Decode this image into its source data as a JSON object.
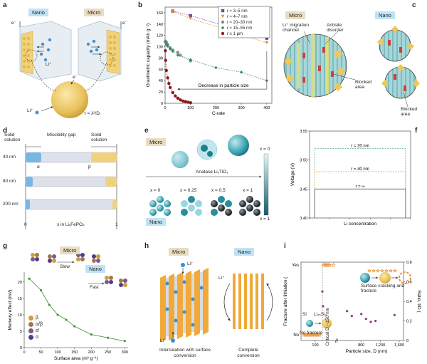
{
  "panels": {
    "a": {
      "label": "a",
      "nano": "Nano",
      "micro": "Micro",
      "e_left": "e⁻",
      "e_right": "e⁻",
      "e_bottom": "e⁻",
      "li_inner": "Li⁺",
      "li_outer": "Li⁺",
      "tau": "τ = λ²/Dᵢ"
    },
    "b": {
      "label": "b",
      "ylabel": "Gravimetric capacity (mAh g⁻¹)",
      "xlabel": "C-rate",
      "annotation": "Decrease in particle size"
    },
    "c": {
      "label": "c",
      "micro": "Micro",
      "nano": "Nano",
      "migration": "Li⁺ migration channel",
      "antisite": "Antisite disorder",
      "blocked1": "Blocked area",
      "blocked2": "Blocked area"
    },
    "d": {
      "label": "d",
      "solid1": "Solid solution",
      "gap": "Miscibility gap",
      "solid2": "Solid solution",
      "rows": [
        "40 nm",
        "80 nm",
        "200 nm"
      ],
      "alpha": "α",
      "beta": "β",
      "x0": "0",
      "x1": "1",
      "xlabel": "x in LiₓFePO₄"
    },
    "e": {
      "label": "e",
      "micro": "Micro",
      "nano": "Nano",
      "material": "Anatase LiₓTiO₂",
      "xs": [
        "x = 0",
        "x = 0.25",
        "x = 0.5",
        "x = 1"
      ],
      "x0": "x = 0",
      "x_left": "x = 0",
      "x1": "x = 1"
    },
    "f": {
      "label": "f",
      "ylabel": "Voltage (V)",
      "xlabel": "Li concentration",
      "r20": "r = 20 nm",
      "r40": "r = 40 nm",
      "rinf": "r = ∞"
    },
    "g": {
      "label": "g",
      "micro": "Micro",
      "nano": "Nano",
      "slow": "Slow",
      "fast": "Fast",
      "ylabel": "Memory effect (mV)",
      "xlabel": "Surface area (m² g⁻¹)",
      "legend": [
        "β",
        "α/β",
        "α′",
        "α"
      ]
    },
    "h": {
      "label": "h",
      "micro": "Micro",
      "nano": "Nano",
      "li_top": "Li⁺",
      "li_bottom": "Li⁺",
      "li_nano": "Li⁺",
      "cap_micro": "Intercalation with surface conversion",
      "cap_nano": "Complete conversion"
    },
    "i": {
      "label": "i",
      "ylabel_left": "Fracture after lithiation (",
      "ylabel_right": "Ratio, t/D (",
      "yes": "Yes",
      "no": "No",
      "critical": "Critical D ~150 nm",
      "si": "Si",
      "lisi": "Li₁₅Si₄",
      "nofracture": "No fracture",
      "surface": "Surface cracking and fracture",
      "xlabel": "Particle size, D (nm)"
    }
  },
  "chart_data": [
    {
      "panel": "b",
      "type": "line",
      "xlabel": "C-rate",
      "ylabel": "Gravimetric capacity (mAh g⁻¹)",
      "xlim": [
        0,
        420
      ],
      "ylim": [
        0,
        170
      ],
      "xticks": [
        0,
        100,
        200,
        300,
        400
      ],
      "yticks": [
        0,
        20,
        40,
        60,
        80,
        100,
        120,
        140,
        160
      ],
      "legend_position": "top-right",
      "series": [
        {
          "name": "r ≈ 3–5 nm",
          "color": "#6c4aa2",
          "marker": "square",
          "x": [
            30,
            100,
            400
          ],
          "y": [
            163,
            155,
            115
          ]
        },
        {
          "name": "r ≈ 4–7 nm",
          "color": "#e08a2e",
          "marker": "triangle",
          "x": [
            30,
            100,
            400
          ],
          "y": [
            162,
            150,
            107
          ]
        },
        {
          "name": "r ≈ 20–30 nm",
          "color": "#8a8a8a",
          "marker": "circle",
          "x": [
            1,
            5,
            10,
            20,
            30,
            50,
            60,
            100
          ],
          "y": [
            110,
            108,
            104,
            98,
            94,
            90,
            85,
            75
          ]
        },
        {
          "name": "r ≈ 15–55 nm",
          "color": "#2e8b57",
          "marker": "diamond",
          "x": [
            1,
            5,
            10,
            20,
            30,
            50,
            100,
            200,
            300,
            400
          ],
          "y": [
            108,
            104,
            101,
            96,
            92,
            85,
            77,
            63,
            55,
            40
          ]
        },
        {
          "name": "r ≥ 1 μm",
          "color": "#8b1a1a",
          "marker": "circle",
          "x": [
            1,
            2,
            5,
            10,
            15,
            20,
            30,
            40,
            50,
            60,
            70,
            80,
            90,
            100
          ],
          "y": [
            93,
            76,
            58,
            45,
            35,
            28,
            19,
            13,
            9,
            6,
            4,
            3,
            2,
            1
          ]
        }
      ]
    },
    {
      "panel": "f",
      "type": "line",
      "xlabel": "Li concentration",
      "ylabel": "Voltage (V)",
      "xlim": [
        0,
        1
      ],
      "ylim": [
        3.4,
        3.55
      ],
      "xticks": [
        0,
        0.2,
        0.4,
        0.6,
        0.8,
        1.0
      ],
      "yticks": [
        3.4,
        3.45,
        3.5,
        3.55
      ],
      "series": [
        {
          "name": "r = 20 nm",
          "color": "#5aaa8a",
          "style": "dashed",
          "x": [
            0.05,
            0.05,
            0.95,
            0.95
          ],
          "y": [
            3.4,
            3.52,
            3.52,
            3.4
          ]
        },
        {
          "name": "r = 40 nm",
          "color": "#e3b04b",
          "style": "dashed",
          "x": [
            0.05,
            0.05,
            0.95,
            0.95
          ],
          "y": [
            3.4,
            3.48,
            3.48,
            3.4
          ]
        },
        {
          "name": "r = ∞",
          "color": "#555555",
          "style": "solid",
          "x": [
            0.05,
            0.05,
            0.95,
            0.95
          ],
          "y": [
            3.4,
            3.45,
            3.45,
            3.4
          ]
        }
      ]
    },
    {
      "panel": "g",
      "type": "line",
      "xlabel": "Surface area (m² g⁻¹)",
      "ylabel": "Memory effect (mV)",
      "xlim": [
        0,
        310
      ],
      "ylim": [
        0,
        23
      ],
      "xticks": [
        0,
        50,
        100,
        150,
        200,
        250,
        300
      ],
      "yticks": [
        0,
        5,
        10,
        15,
        20
      ],
      "series": [
        {
          "name": "",
          "color": "#4a9a3a",
          "x": [
            15,
            50,
            75,
            100,
            125,
            150,
            200,
            250,
            300
          ],
          "y": [
            21,
            17.5,
            13,
            10,
            8.5,
            6.5,
            4,
            3,
            2
          ]
        }
      ]
    },
    {
      "panel": "i",
      "type": "scatter",
      "xlabel": "Particle size, D (nm)",
      "ylabel": "Fracture after lithiation",
      "yticks_left": [
        "No",
        "Yes"
      ],
      "yticks_right": [
        0,
        0.2,
        0.4,
        0.6,
        0.8
      ],
      "xticks": [
        "100",
        "800",
        "1,200",
        "1,600"
      ],
      "series": [
        {
          "name": "",
          "color": "#e3913c",
          "marker": "star",
          "x": [
            20,
            30,
            40,
            50,
            60,
            70,
            80,
            90,
            100,
            110,
            120,
            130
          ],
          "y": [
            "No",
            "No",
            "No",
            "No",
            "No",
            "No",
            "No",
            "No",
            "No",
            "No",
            "No",
            "No"
          ]
        },
        {
          "name": "",
          "color": "#e3913c",
          "marker": "star",
          "x": [
            160,
            170,
            180,
            190,
            200,
            210
          ],
          "y": [
            "Yes",
            "Yes",
            "Yes",
            "Yes",
            "Yes",
            "Yes"
          ]
        },
        {
          "name": "",
          "color": "#8e3a8a",
          "marker": "circle",
          "x": [
            150,
            155,
            500,
            600,
            800,
            900,
            1000,
            1100,
            1500
          ],
          "y": [
            0.5,
            0.35,
            0.3,
            0.25,
            0.27,
            0.22,
            0.19,
            0.2,
            0.26
          ]
        }
      ]
    }
  ],
  "legend_b": [
    "r ≈ 3–5 nm",
    "r ≈ 4–7 nm",
    "r ≈ 20–30 nm",
    "r ≈ 15–55 nm",
    "r ≥ 1 μm"
  ]
}
